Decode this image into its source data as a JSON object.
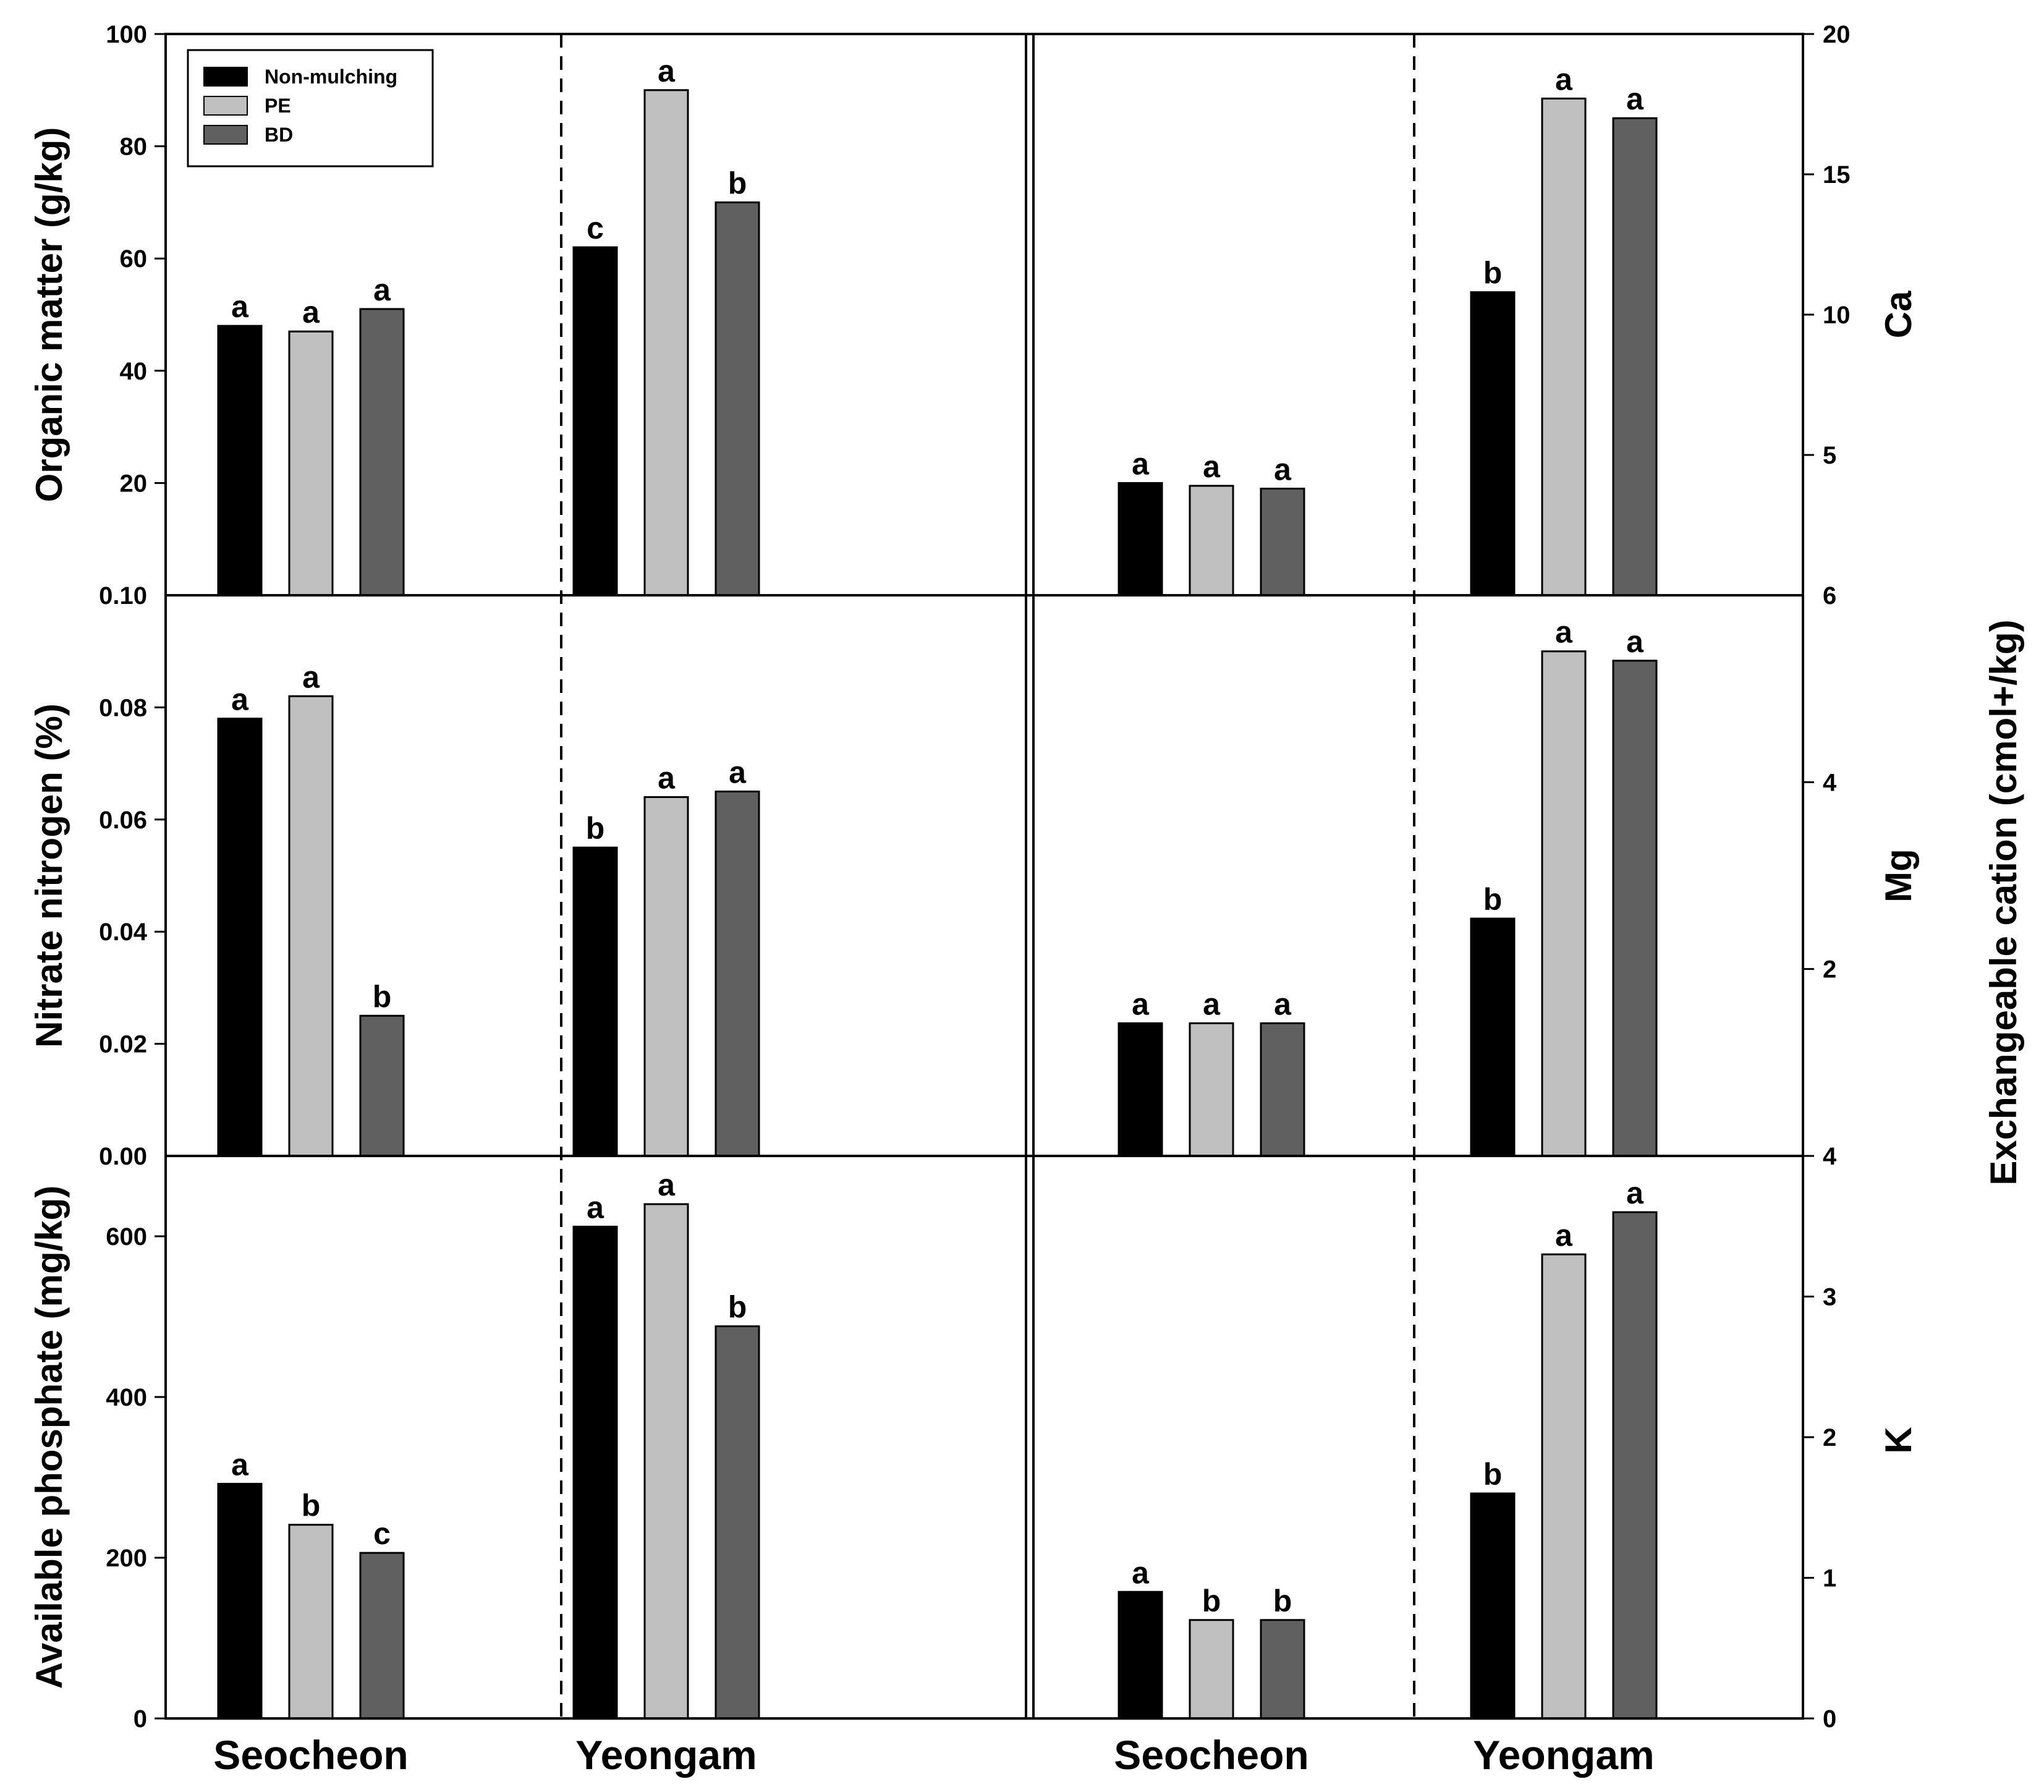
{
  "chart_data": {
    "type": "bar",
    "categories": [
      "Seocheon",
      "Yeongam"
    ],
    "legend": {
      "placement": "top-left",
      "entries": [
        "Non-mulching",
        "PE",
        "BD"
      ]
    },
    "colors": {
      "Non-mulching": "#000000",
      "PE": "#c0c0c0",
      "BD": "#606060"
    },
    "right_axis_title": "Exchangeable cation (cmol+/kg)",
    "panels": [
      {
        "id": "organic-matter",
        "column": "left",
        "row": 0,
        "ylabel": "Organic matter (g/kg)",
        "ylim": [
          0,
          100
        ],
        "ticks": [
          20,
          40,
          60,
          80,
          100
        ],
        "bottom_tick_label": "0.10",
        "series": [
          {
            "name": "Non-mulching",
            "values": [
              48,
              62
            ],
            "letters": [
              "a",
              "c"
            ]
          },
          {
            "name": "PE",
            "values": [
              47,
              90
            ],
            "letters": [
              "a",
              "a"
            ]
          },
          {
            "name": "BD",
            "values": [
              51,
              70
            ],
            "letters": [
              "a",
              "b"
            ]
          }
        ]
      },
      {
        "id": "nitrate-nitrogen",
        "column": "left",
        "row": 1,
        "ylabel": "Nitrate nitrogen (%)",
        "ylim": [
          0,
          0.1
        ],
        "ticks": [
          0.02,
          0.04,
          0.06,
          0.08
        ],
        "tick_labels": [
          "0.02",
          "0.04",
          "0.06",
          "0.08"
        ],
        "bottom_tick_label": "0.00",
        "series": [
          {
            "name": "Non-mulching",
            "values": [
              0.078,
              0.055
            ],
            "letters": [
              "a",
              "b"
            ]
          },
          {
            "name": "PE",
            "values": [
              0.082,
              0.064
            ],
            "letters": [
              "a",
              "a"
            ]
          },
          {
            "name": "BD",
            "values": [
              0.025,
              0.065
            ],
            "letters": [
              "b",
              "a"
            ]
          }
        ]
      },
      {
        "id": "available-phosphate",
        "column": "left",
        "row": 2,
        "ylabel": "Available phosphate (mg/kg)",
        "ylim": [
          0,
          700
        ],
        "ticks": [
          0,
          200,
          400,
          600
        ],
        "series": [
          {
            "name": "Non-mulching",
            "values": [
              292,
              612
            ],
            "letters": [
              "a",
              "a"
            ]
          },
          {
            "name": "PE",
            "values": [
              241,
              640
            ],
            "letters": [
              "b",
              "a"
            ]
          },
          {
            "name": "BD",
            "values": [
              206,
              488
            ],
            "letters": [
              "c",
              "b"
            ]
          }
        ]
      },
      {
        "id": "ca",
        "column": "right",
        "row": 0,
        "ylabel": "Ca",
        "ylim": [
          0,
          20
        ],
        "ticks": [
          5,
          10,
          15,
          20
        ],
        "bottom_tick_label": "6",
        "series": [
          {
            "name": "Non-mulching",
            "values": [
              4.0,
              10.8
            ],
            "letters": [
              "a",
              "b"
            ]
          },
          {
            "name": "PE",
            "values": [
              3.9,
              17.7
            ],
            "letters": [
              "a",
              "a"
            ]
          },
          {
            "name": "BD",
            "values": [
              3.8,
              17.0
            ],
            "letters": [
              "a",
              "a"
            ]
          }
        ]
      },
      {
        "id": "mg",
        "column": "right",
        "row": 1,
        "ylabel": "Mg",
        "ylim": [
          0,
          6
        ],
        "ticks": [
          2,
          4
        ],
        "bottom_tick_label": "4",
        "series": [
          {
            "name": "Non-mulching",
            "values": [
              1.42,
              2.54
            ],
            "letters": [
              "a",
              "b"
            ]
          },
          {
            "name": "PE",
            "values": [
              1.42,
              5.4
            ],
            "letters": [
              "a",
              "a"
            ]
          },
          {
            "name": "BD",
            "values": [
              1.42,
              5.3
            ],
            "letters": [
              "a",
              "a"
            ]
          }
        ]
      },
      {
        "id": "k",
        "column": "right",
        "row": 2,
        "ylabel": "K",
        "ylim": [
          0,
          4
        ],
        "ticks": [
          0,
          1,
          2,
          3,
          4
        ],
        "series": [
          {
            "name": "Non-mulching",
            "values": [
              0.9,
              1.6
            ],
            "letters": [
              "a",
              "b"
            ]
          },
          {
            "name": "PE",
            "values": [
              0.7,
              3.3
            ],
            "letters": [
              "b",
              "a"
            ]
          },
          {
            "name": "BD",
            "values": [
              0.7,
              3.6
            ],
            "letters": [
              "b",
              "a"
            ]
          }
        ]
      }
    ]
  }
}
